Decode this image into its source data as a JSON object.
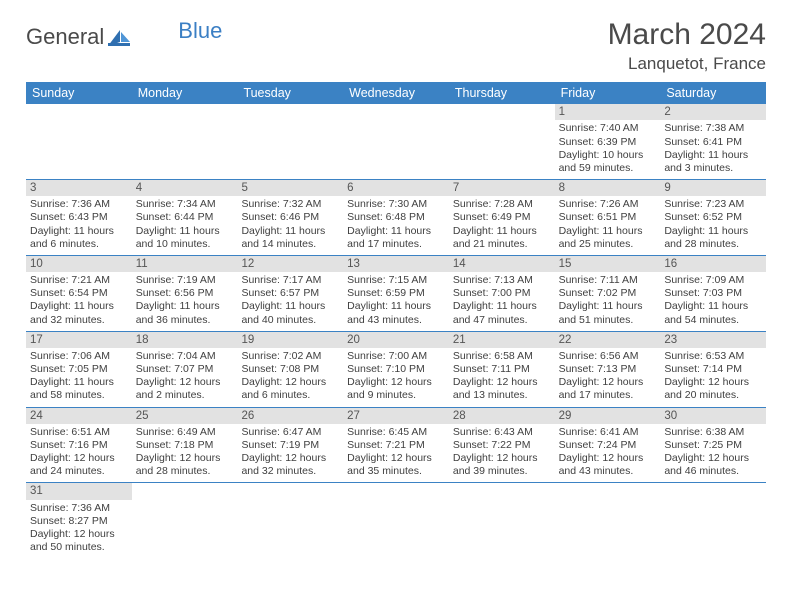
{
  "brand": {
    "word1": "General",
    "word2": "Blue"
  },
  "title": "March 2024",
  "location": "Lanquetot, France",
  "colors": {
    "header_bar": "#3b82c4",
    "daynum_bg": "#e2e2e2",
    "week_border": "#3b82c4",
    "text": "#404040",
    "brand_gray": "#4a4a4a",
    "brand_blue": "#3b7fc4"
  },
  "days_of_week": [
    "Sunday",
    "Monday",
    "Tuesday",
    "Wednesday",
    "Thursday",
    "Friday",
    "Saturday"
  ],
  "weeks": [
    [
      null,
      null,
      null,
      null,
      null,
      {
        "n": "1",
        "sr": "Sunrise: 7:40 AM",
        "ss": "Sunset: 6:39 PM",
        "dl1": "Daylight: 10 hours",
        "dl2": "and 59 minutes."
      },
      {
        "n": "2",
        "sr": "Sunrise: 7:38 AM",
        "ss": "Sunset: 6:41 PM",
        "dl1": "Daylight: 11 hours",
        "dl2": "and 3 minutes."
      }
    ],
    [
      {
        "n": "3",
        "sr": "Sunrise: 7:36 AM",
        "ss": "Sunset: 6:43 PM",
        "dl1": "Daylight: 11 hours",
        "dl2": "and 6 minutes."
      },
      {
        "n": "4",
        "sr": "Sunrise: 7:34 AM",
        "ss": "Sunset: 6:44 PM",
        "dl1": "Daylight: 11 hours",
        "dl2": "and 10 minutes."
      },
      {
        "n": "5",
        "sr": "Sunrise: 7:32 AM",
        "ss": "Sunset: 6:46 PM",
        "dl1": "Daylight: 11 hours",
        "dl2": "and 14 minutes."
      },
      {
        "n": "6",
        "sr": "Sunrise: 7:30 AM",
        "ss": "Sunset: 6:48 PM",
        "dl1": "Daylight: 11 hours",
        "dl2": "and 17 minutes."
      },
      {
        "n": "7",
        "sr": "Sunrise: 7:28 AM",
        "ss": "Sunset: 6:49 PM",
        "dl1": "Daylight: 11 hours",
        "dl2": "and 21 minutes."
      },
      {
        "n": "8",
        "sr": "Sunrise: 7:26 AM",
        "ss": "Sunset: 6:51 PM",
        "dl1": "Daylight: 11 hours",
        "dl2": "and 25 minutes."
      },
      {
        "n": "9",
        "sr": "Sunrise: 7:23 AM",
        "ss": "Sunset: 6:52 PM",
        "dl1": "Daylight: 11 hours",
        "dl2": "and 28 minutes."
      }
    ],
    [
      {
        "n": "10",
        "sr": "Sunrise: 7:21 AM",
        "ss": "Sunset: 6:54 PM",
        "dl1": "Daylight: 11 hours",
        "dl2": "and 32 minutes."
      },
      {
        "n": "11",
        "sr": "Sunrise: 7:19 AM",
        "ss": "Sunset: 6:56 PM",
        "dl1": "Daylight: 11 hours",
        "dl2": "and 36 minutes."
      },
      {
        "n": "12",
        "sr": "Sunrise: 7:17 AM",
        "ss": "Sunset: 6:57 PM",
        "dl1": "Daylight: 11 hours",
        "dl2": "and 40 minutes."
      },
      {
        "n": "13",
        "sr": "Sunrise: 7:15 AM",
        "ss": "Sunset: 6:59 PM",
        "dl1": "Daylight: 11 hours",
        "dl2": "and 43 minutes."
      },
      {
        "n": "14",
        "sr": "Sunrise: 7:13 AM",
        "ss": "Sunset: 7:00 PM",
        "dl1": "Daylight: 11 hours",
        "dl2": "and 47 minutes."
      },
      {
        "n": "15",
        "sr": "Sunrise: 7:11 AM",
        "ss": "Sunset: 7:02 PM",
        "dl1": "Daylight: 11 hours",
        "dl2": "and 51 minutes."
      },
      {
        "n": "16",
        "sr": "Sunrise: 7:09 AM",
        "ss": "Sunset: 7:03 PM",
        "dl1": "Daylight: 11 hours",
        "dl2": "and 54 minutes."
      }
    ],
    [
      {
        "n": "17",
        "sr": "Sunrise: 7:06 AM",
        "ss": "Sunset: 7:05 PM",
        "dl1": "Daylight: 11 hours",
        "dl2": "and 58 minutes."
      },
      {
        "n": "18",
        "sr": "Sunrise: 7:04 AM",
        "ss": "Sunset: 7:07 PM",
        "dl1": "Daylight: 12 hours",
        "dl2": "and 2 minutes."
      },
      {
        "n": "19",
        "sr": "Sunrise: 7:02 AM",
        "ss": "Sunset: 7:08 PM",
        "dl1": "Daylight: 12 hours",
        "dl2": "and 6 minutes."
      },
      {
        "n": "20",
        "sr": "Sunrise: 7:00 AM",
        "ss": "Sunset: 7:10 PM",
        "dl1": "Daylight: 12 hours",
        "dl2": "and 9 minutes."
      },
      {
        "n": "21",
        "sr": "Sunrise: 6:58 AM",
        "ss": "Sunset: 7:11 PM",
        "dl1": "Daylight: 12 hours",
        "dl2": "and 13 minutes."
      },
      {
        "n": "22",
        "sr": "Sunrise: 6:56 AM",
        "ss": "Sunset: 7:13 PM",
        "dl1": "Daylight: 12 hours",
        "dl2": "and 17 minutes."
      },
      {
        "n": "23",
        "sr": "Sunrise: 6:53 AM",
        "ss": "Sunset: 7:14 PM",
        "dl1": "Daylight: 12 hours",
        "dl2": "and 20 minutes."
      }
    ],
    [
      {
        "n": "24",
        "sr": "Sunrise: 6:51 AM",
        "ss": "Sunset: 7:16 PM",
        "dl1": "Daylight: 12 hours",
        "dl2": "and 24 minutes."
      },
      {
        "n": "25",
        "sr": "Sunrise: 6:49 AM",
        "ss": "Sunset: 7:18 PM",
        "dl1": "Daylight: 12 hours",
        "dl2": "and 28 minutes."
      },
      {
        "n": "26",
        "sr": "Sunrise: 6:47 AM",
        "ss": "Sunset: 7:19 PM",
        "dl1": "Daylight: 12 hours",
        "dl2": "and 32 minutes."
      },
      {
        "n": "27",
        "sr": "Sunrise: 6:45 AM",
        "ss": "Sunset: 7:21 PM",
        "dl1": "Daylight: 12 hours",
        "dl2": "and 35 minutes."
      },
      {
        "n": "28",
        "sr": "Sunrise: 6:43 AM",
        "ss": "Sunset: 7:22 PM",
        "dl1": "Daylight: 12 hours",
        "dl2": "and 39 minutes."
      },
      {
        "n": "29",
        "sr": "Sunrise: 6:41 AM",
        "ss": "Sunset: 7:24 PM",
        "dl1": "Daylight: 12 hours",
        "dl2": "and 43 minutes."
      },
      {
        "n": "30",
        "sr": "Sunrise: 6:38 AM",
        "ss": "Sunset: 7:25 PM",
        "dl1": "Daylight: 12 hours",
        "dl2": "and 46 minutes."
      }
    ],
    [
      {
        "n": "31",
        "sr": "Sunrise: 7:36 AM",
        "ss": "Sunset: 8:27 PM",
        "dl1": "Daylight: 12 hours",
        "dl2": "and 50 minutes."
      },
      null,
      null,
      null,
      null,
      null,
      null
    ]
  ]
}
